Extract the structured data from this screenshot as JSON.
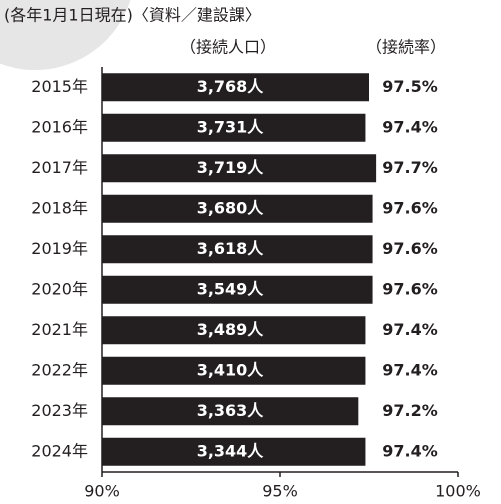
{
  "chart_data": {
    "type": "bar",
    "orientation": "horizontal",
    "title": "(各年1月1日現在)〈資料／建設課〉",
    "categories": [
      "2015年",
      "2016年",
      "2017年",
      "2018年",
      "2019年",
      "2020年",
      "2021年",
      "2022年",
      "2023年",
      "2024年"
    ],
    "series": [
      {
        "name": "（接続率）",
        "color": "#231f20",
        "values": [
          97.5,
          97.4,
          97.7,
          97.6,
          97.6,
          97.6,
          97.4,
          97.4,
          97.2,
          97.4
        ],
        "value_labels": [
          "97.5%",
          "97.4%",
          "97.7%",
          "97.6%",
          "97.6%",
          "97.6%",
          "97.4%",
          "97.4%",
          "97.2%",
          "97.4%"
        ]
      },
      {
        "name": "（接続人口）",
        "values": [
          3768,
          3731,
          3719,
          3680,
          3618,
          3549,
          3489,
          3410,
          3363,
          3344
        ],
        "value_labels": [
          "3,768人",
          "3,731人",
          "3,719人",
          "3,680人",
          "3,618人",
          "3,549人",
          "3,489人",
          "3,410人",
          "3,363人",
          "3,344人"
        ]
      }
    ],
    "xlim": [
      90,
      100
    ],
    "xticks": [
      {
        "value": 90,
        "label": "90%"
      },
      {
        "value": 95,
        "label": "95%"
      },
      {
        "value": 100,
        "label": "100%"
      }
    ]
  }
}
